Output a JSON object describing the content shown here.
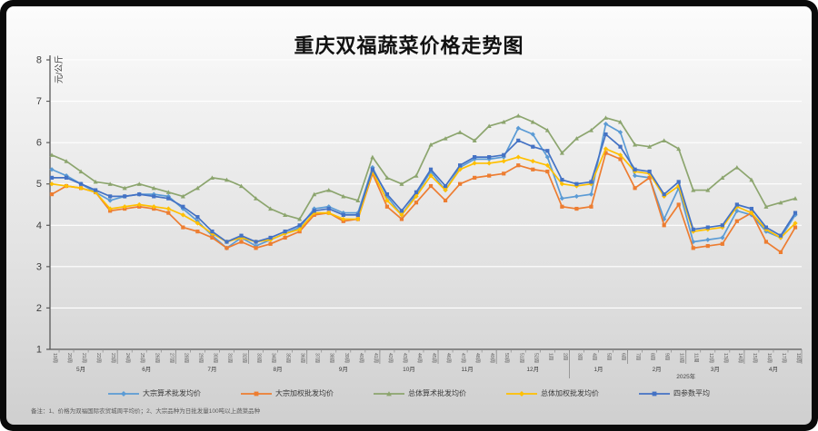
{
  "note": "备注：1、价格为双福国际农贸城周平均价；2、大宗品种为日批发量100吨以上蔬菜品种",
  "chart_data": {
    "type": "line",
    "title": "重庆双福蔬菜价格走势图",
    "ylabel": "元/公斤",
    "xlabel": "",
    "ylim": [
      1,
      8
    ],
    "y_ticks": [
      1,
      2,
      3,
      4,
      5,
      6,
      7,
      8
    ],
    "grid": "horizontal-white",
    "legend_position": "bottom",
    "categories": [
      "19周",
      "20周",
      "21周",
      "22周",
      "23周",
      "24周",
      "25周",
      "26周",
      "27周",
      "28周",
      "29周",
      "30周",
      "31周",
      "32周",
      "33周",
      "34周",
      "35周",
      "36周",
      "37周",
      "38周",
      "39周",
      "40周",
      "41周",
      "42周",
      "43周",
      "44周",
      "45周",
      "46周",
      "47周",
      "48周",
      "49周",
      "50周",
      "51周",
      "52周",
      "1周",
      "2周",
      "3周",
      "4周",
      "5周",
      "6周",
      "7周",
      "8周",
      "9周",
      "10周",
      "11周",
      "12周",
      "13周",
      "14周",
      "15周",
      "16周",
      "17周",
      "18周"
    ],
    "month_groups": [
      {
        "label": "5月",
        "weeks": 5
      },
      {
        "label": "6月",
        "weeks": 4
      },
      {
        "label": "7月",
        "weeks": 5
      },
      {
        "label": "8月",
        "weeks": 4
      },
      {
        "label": "9月",
        "weeks": 5
      },
      {
        "label": "10月",
        "weeks": 4
      },
      {
        "label": "11月",
        "weeks": 4
      },
      {
        "label": "12月",
        "weeks": 5
      },
      {
        "label": "1月",
        "weeks": 4
      },
      {
        "label": "2月",
        "weeks": 4
      },
      {
        "label": "3月",
        "weeks": 4
      },
      {
        "label": "4月",
        "weeks": 4
      }
    ],
    "year_label": {
      "label": "2025年",
      "start_index": 36
    },
    "series": [
      {
        "name": "大宗算术批发均价",
        "color": "#5B9BD5",
        "marker": "diamond",
        "values": [
          5.35,
          5.2,
          5.0,
          4.8,
          4.6,
          4.7,
          4.75,
          4.75,
          4.7,
          4.4,
          4.1,
          3.75,
          3.45,
          3.7,
          3.5,
          3.65,
          3.8,
          3.95,
          4.4,
          4.45,
          4.3,
          4.3,
          5.4,
          4.7,
          4.25,
          4.75,
          5.3,
          4.85,
          5.4,
          5.6,
          5.6,
          5.65,
          6.35,
          6.2,
          5.65,
          4.65,
          4.7,
          4.75,
          6.45,
          6.25,
          5.2,
          5.15,
          4.15,
          4.9,
          3.6,
          3.65,
          3.7,
          4.35,
          4.25,
          3.85,
          3.7,
          4.25
        ]
      },
      {
        "name": "大宗加权批发均价",
        "color": "#ED7D31",
        "marker": "square",
        "values": [
          4.75,
          4.95,
          4.9,
          4.8,
          4.35,
          4.4,
          4.45,
          4.4,
          4.3,
          3.95,
          3.85,
          3.7,
          3.45,
          3.6,
          3.45,
          3.55,
          3.7,
          3.85,
          4.25,
          4.3,
          4.1,
          4.15,
          5.25,
          4.45,
          4.15,
          4.55,
          4.95,
          4.6,
          5.0,
          5.15,
          5.2,
          5.25,
          5.45,
          5.35,
          5.3,
          4.45,
          4.4,
          4.45,
          5.75,
          5.6,
          4.9,
          5.15,
          4.0,
          4.5,
          3.45,
          3.5,
          3.55,
          4.1,
          4.3,
          3.6,
          3.35,
          3.95
        ]
      },
      {
        "name": "总体算术批发均价",
        "color": "#8CA56E",
        "marker": "triangle",
        "values": [
          5.7,
          5.55,
          5.3,
          5.05,
          5.0,
          4.9,
          5.0,
          4.9,
          4.8,
          4.7,
          4.9,
          5.15,
          5.1,
          4.95,
          4.65,
          4.4,
          4.25,
          4.15,
          4.75,
          4.85,
          4.7,
          4.6,
          5.65,
          5.15,
          5.0,
          5.2,
          5.95,
          6.1,
          6.25,
          6.05,
          6.4,
          6.5,
          6.65,
          6.5,
          6.3,
          5.75,
          6.1,
          6.3,
          6.6,
          6.5,
          5.95,
          5.9,
          6.05,
          5.85,
          4.85,
          4.85,
          5.15,
          5.4,
          5.1,
          4.45,
          4.55,
          4.65
        ]
      },
      {
        "name": "总体加权批发均价",
        "color": "#FFC000",
        "marker": "diamond",
        "values": [
          5.0,
          4.95,
          4.9,
          4.8,
          4.4,
          4.45,
          4.5,
          4.45,
          4.4,
          4.25,
          4.05,
          3.8,
          3.6,
          3.7,
          3.6,
          3.65,
          3.8,
          3.9,
          4.3,
          4.3,
          4.15,
          4.15,
          5.3,
          4.6,
          4.25,
          4.7,
          5.2,
          4.85,
          5.35,
          5.5,
          5.5,
          5.55,
          5.65,
          5.55,
          5.45,
          5.0,
          4.95,
          5.0,
          5.85,
          5.7,
          5.3,
          5.25,
          4.7,
          4.95,
          3.85,
          3.9,
          3.95,
          4.45,
          4.3,
          3.9,
          3.7,
          4.05
        ]
      },
      {
        "name": "四参数平均",
        "color": "#4472C4",
        "marker": "square",
        "values": [
          5.15,
          5.15,
          5.0,
          4.85,
          4.7,
          4.7,
          4.75,
          4.7,
          4.65,
          4.45,
          4.2,
          3.85,
          3.6,
          3.75,
          3.6,
          3.7,
          3.85,
          4.0,
          4.35,
          4.4,
          4.25,
          4.25,
          5.35,
          4.75,
          4.35,
          4.8,
          5.35,
          4.95,
          5.45,
          5.65,
          5.65,
          5.7,
          6.05,
          5.9,
          5.8,
          5.1,
          5.0,
          5.05,
          6.2,
          5.9,
          5.35,
          5.3,
          4.75,
          5.05,
          3.9,
          3.95,
          4.0,
          4.5,
          4.4,
          3.95,
          3.75,
          4.3
        ]
      }
    ]
  }
}
